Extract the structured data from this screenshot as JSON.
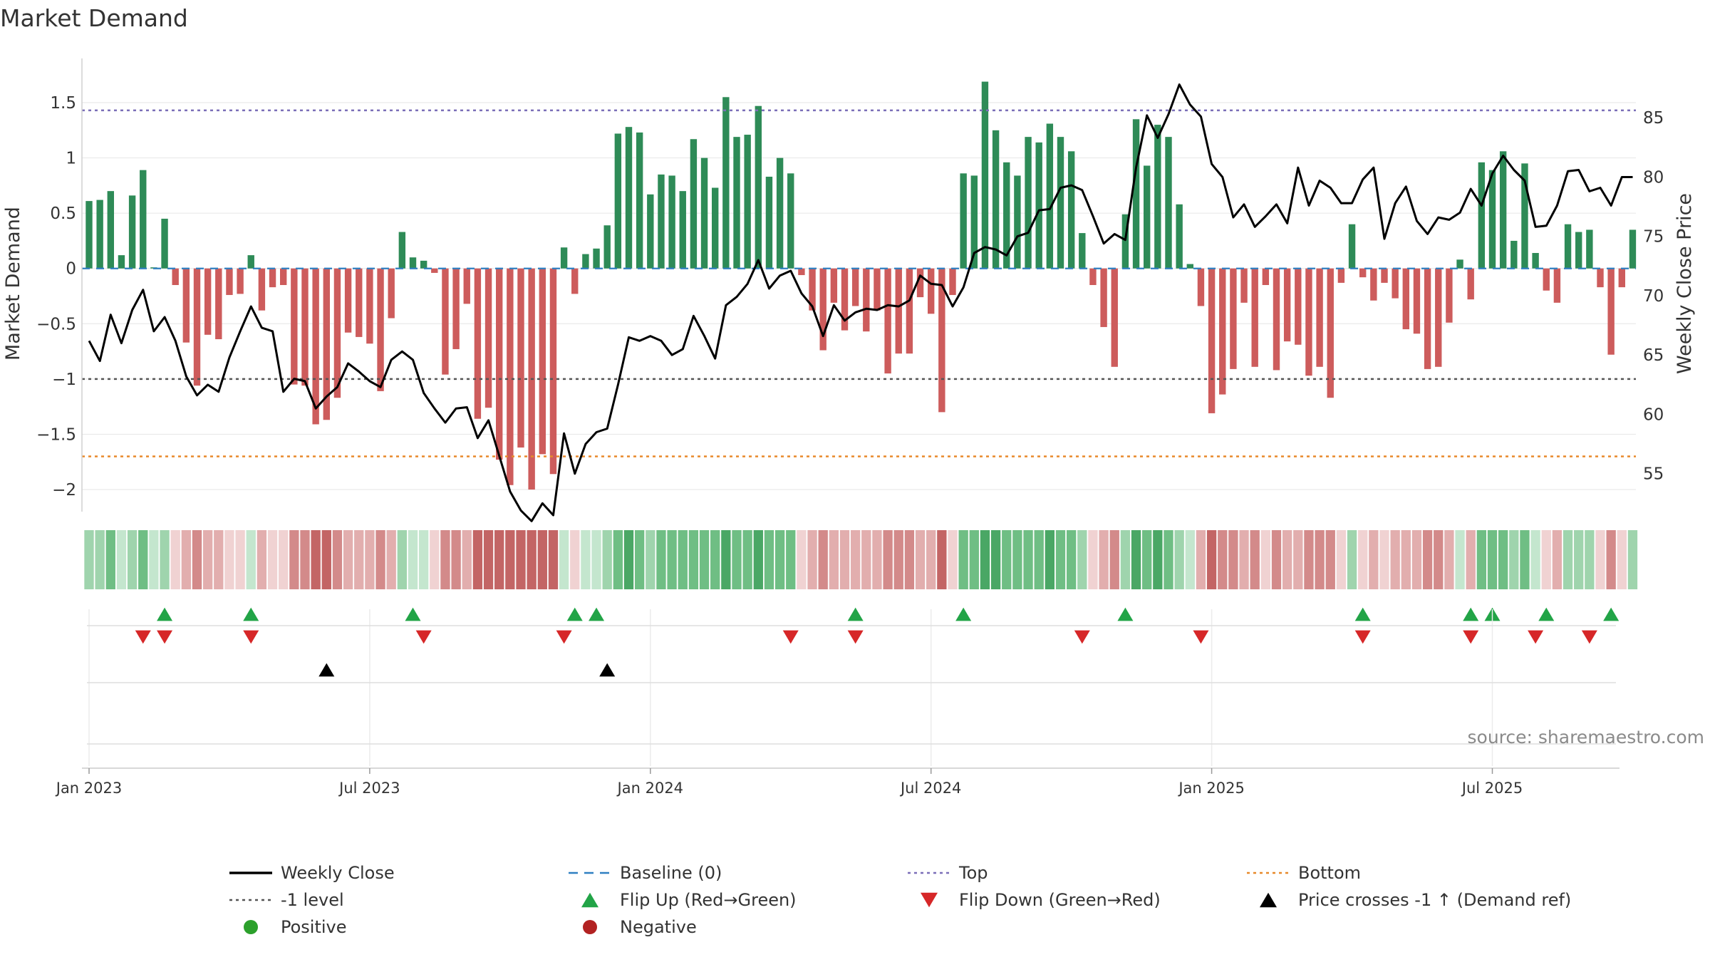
{
  "chart_data": {
    "type": "bar",
    "title": "Market Demand",
    "ylabel_left": "Market Demand",
    "ylabel_right": "Weekly Close Price",
    "ylim_left": [
      -2.2,
      1.9
    ],
    "ylim_right": [
      51.8,
      90.0
    ],
    "left_ticks": [
      {
        "v": 1.5,
        "label": "1.5"
      },
      {
        "v": 1,
        "label": "1"
      },
      {
        "v": 0.5,
        "label": "0.5"
      },
      {
        "v": 0,
        "label": "0"
      },
      {
        "v": -0.5,
        "label": "−0.5"
      },
      {
        "v": -1,
        "label": "−1"
      },
      {
        "v": -1.5,
        "label": "−1.5"
      },
      {
        "v": -2,
        "label": "−2"
      }
    ],
    "right_ticks": [
      {
        "v": 85,
        "label": "85"
      },
      {
        "v": 80,
        "label": "80"
      },
      {
        "v": 75,
        "label": "75"
      },
      {
        "v": 70,
        "label": "70"
      },
      {
        "v": 65,
        "label": "65"
      },
      {
        "v": 60,
        "label": "60"
      },
      {
        "v": 55,
        "label": "55"
      }
    ],
    "x_ticks": [
      {
        "week": 1,
        "label": "Jan 2023"
      },
      {
        "week": 27,
        "label": "Jul 2023"
      },
      {
        "week": 53,
        "label": "Jan 2024"
      },
      {
        "week": 79,
        "label": "Jul 2024"
      },
      {
        "week": 105,
        "label": "Jan 2025"
      },
      {
        "week": 131,
        "label": "Jul 2025"
      }
    ],
    "reference_lines": [
      {
        "name": "Top",
        "axis": "left",
        "value": 1.43,
        "color": "#7b6fb8",
        "dash": "dot"
      },
      {
        "name": "-1 level",
        "axis": "left",
        "value": -1.0,
        "color": "#555555",
        "dash": "dot"
      },
      {
        "name": "Bottom",
        "axis": "left",
        "value": -1.7,
        "color": "#e8892a",
        "dash": "dot"
      },
      {
        "name": "Baseline (0)",
        "axis": "left",
        "value": 0,
        "color": "#2f7fc1",
        "dash": "dash"
      }
    ],
    "demand_values": [
      0.61,
      0.62,
      0.7,
      0.12,
      0.66,
      0.89,
      0.01,
      0.45,
      -0.15,
      -0.67,
      -1.06,
      -0.6,
      -0.64,
      -0.24,
      -0.23,
      0.12,
      -0.38,
      -0.17,
      -0.15,
      -1.05,
      -1.06,
      -1.41,
      -1.37,
      -1.17,
      -0.58,
      -0.62,
      -0.68,
      -1.11,
      -0.45,
      0.33,
      0.1,
      0.07,
      -0.04,
      -0.96,
      -0.73,
      -0.32,
      -1.36,
      -1.26,
      -1.73,
      -1.96,
      -1.62,
      -2.0,
      -1.68,
      -1.86,
      0.19,
      -0.23,
      0.13,
      0.18,
      0.39,
      1.22,
      1.28,
      1.23,
      0.67,
      0.85,
      0.84,
      0.7,
      1.17,
      1.0,
      0.73,
      1.55,
      1.19,
      1.21,
      1.47,
      0.83,
      1.0,
      0.86,
      -0.06,
      -0.38,
      -0.74,
      -0.31,
      -0.56,
      -0.34,
      -0.57,
      -0.38,
      -0.95,
      -0.77,
      -0.77,
      -0.26,
      -0.41,
      -1.3,
      -0.24,
      0.86,
      0.84,
      1.69,
      1.25,
      0.96,
      0.84,
      1.19,
      1.14,
      1.31,
      1.19,
      1.06,
      0.32,
      -0.15,
      -0.53,
      -0.89,
      0.49,
      1.35,
      0.93,
      1.3,
      1.19,
      0.58,
      0.04,
      -0.34,
      -1.31,
      -1.14,
      -0.91,
      -0.31,
      -0.89,
      -0.15,
      -0.92,
      -0.66,
      -0.69,
      -0.97,
      -0.89,
      -1.17,
      -0.13,
      0.4,
      -0.08,
      -0.29,
      -0.13,
      -0.27,
      -0.55,
      -0.59,
      -0.91,
      -0.89,
      -0.49,
      0.08,
      -0.28,
      0.96,
      0.89,
      1.06,
      0.25,
      0.95,
      0.14,
      -0.2,
      -0.31,
      0.4,
      0.33,
      0.35,
      -0.17,
      -0.78,
      -0.17,
      0.35
    ],
    "close_prices": [
      66.2,
      64.5,
      68.4,
      66.0,
      68.8,
      70.5,
      67.0,
      68.2,
      66.2,
      63.2,
      61.6,
      62.5,
      61.9,
      64.8,
      67.0,
      69.1,
      67.3,
      67.0,
      61.9,
      63.0,
      62.8,
      60.5,
      61.5,
      62.3,
      64.3,
      63.6,
      62.8,
      62.3,
      64.6,
      65.3,
      64.6,
      61.8,
      60.5,
      59.3,
      60.5,
      60.6,
      58.0,
      59.5,
      56.5,
      53.5,
      51.9,
      51.0,
      52.5,
      51.5,
      58.4,
      55.0,
      57.5,
      58.5,
      58.8,
      62.5,
      66.5,
      66.2,
      66.6,
      66.2,
      65.0,
      65.5,
      68.3,
      66.6,
      64.7,
      69.2,
      69.9,
      71.0,
      73.0,
      70.6,
      71.7,
      72.1,
      70.2,
      69.1,
      66.6,
      69.2,
      67.9,
      68.6,
      68.9,
      68.8,
      69.2,
      69.1,
      69.6,
      71.7,
      71.0,
      70.9,
      69.1,
      70.7,
      73.6,
      74.1,
      73.9,
      73.4,
      75.0,
      75.3,
      77.2,
      77.3,
      79.1,
      79.3,
      78.9,
      76.7,
      74.4,
      75.2,
      74.7,
      80.8,
      85.2,
      83.3,
      85.3,
      87.8,
      86.1,
      85.1,
      81.1,
      80.0,
      76.6,
      77.7,
      75.8,
      76.7,
      77.7,
      76.1,
      80.8,
      77.6,
      79.7,
      79.1,
      77.8,
      77.8,
      79.8,
      80.8,
      74.8,
      77.8,
      79.2,
      76.3,
      75.2,
      76.6,
      76.4,
      77.0,
      79.0,
      77.6,
      80.3,
      81.8,
      80.6,
      79.7,
      75.8,
      75.9,
      77.6,
      80.5,
      80.6,
      78.8,
      79.1,
      77.6,
      80.0,
      80.0
    ],
    "flip_up_weeks": [
      8,
      16,
      31,
      46,
      48,
      72,
      82,
      97,
      119,
      129,
      131,
      136,
      142
    ],
    "flip_down_weeks": [
      6,
      8,
      16,
      32,
      45,
      66,
      72,
      93,
      104,
      119,
      129,
      135,
      140
    ],
    "price_cross_weeks": [
      23,
      49
    ],
    "source_label": "source: sharemaestro.com",
    "legend": [
      {
        "label": "Weekly Close",
        "symbol": "line",
        "color": "#000000"
      },
      {
        "label": "Baseline (0)",
        "symbol": "dash",
        "color": "#2f7fc1"
      },
      {
        "label": "Top",
        "symbol": "dot",
        "color": "#7b6fb8"
      },
      {
        "label": "Bottom",
        "symbol": "dot",
        "color": "#e8892a"
      },
      {
        "label": "-1 level",
        "symbol": "dot",
        "color": "#555555"
      },
      {
        "label": "Flip Up (Red→Green)",
        "symbol": "tri-up",
        "color": "#22a447"
      },
      {
        "label": "Flip Down (Green→Red)",
        "symbol": "tri-down",
        "color": "#d62728"
      },
      {
        "label": "Price crosses -1 ↑ (Demand ref)",
        "symbol": "tri-up",
        "color": "#000000"
      },
      {
        "label": "Positive",
        "symbol": "circle",
        "color": "#2ca02c"
      },
      {
        "label": "Negative",
        "symbol": "circle",
        "color": "#b22222"
      }
    ],
    "colors": {
      "positive_bar": "#2e8b57",
      "negative_bar": "#cd5c5c",
      "price_line": "#000000",
      "flip_up": "#22a447",
      "flip_down": "#d62728",
      "cross": "#000000",
      "grid": "#e6e6e6"
    }
  }
}
